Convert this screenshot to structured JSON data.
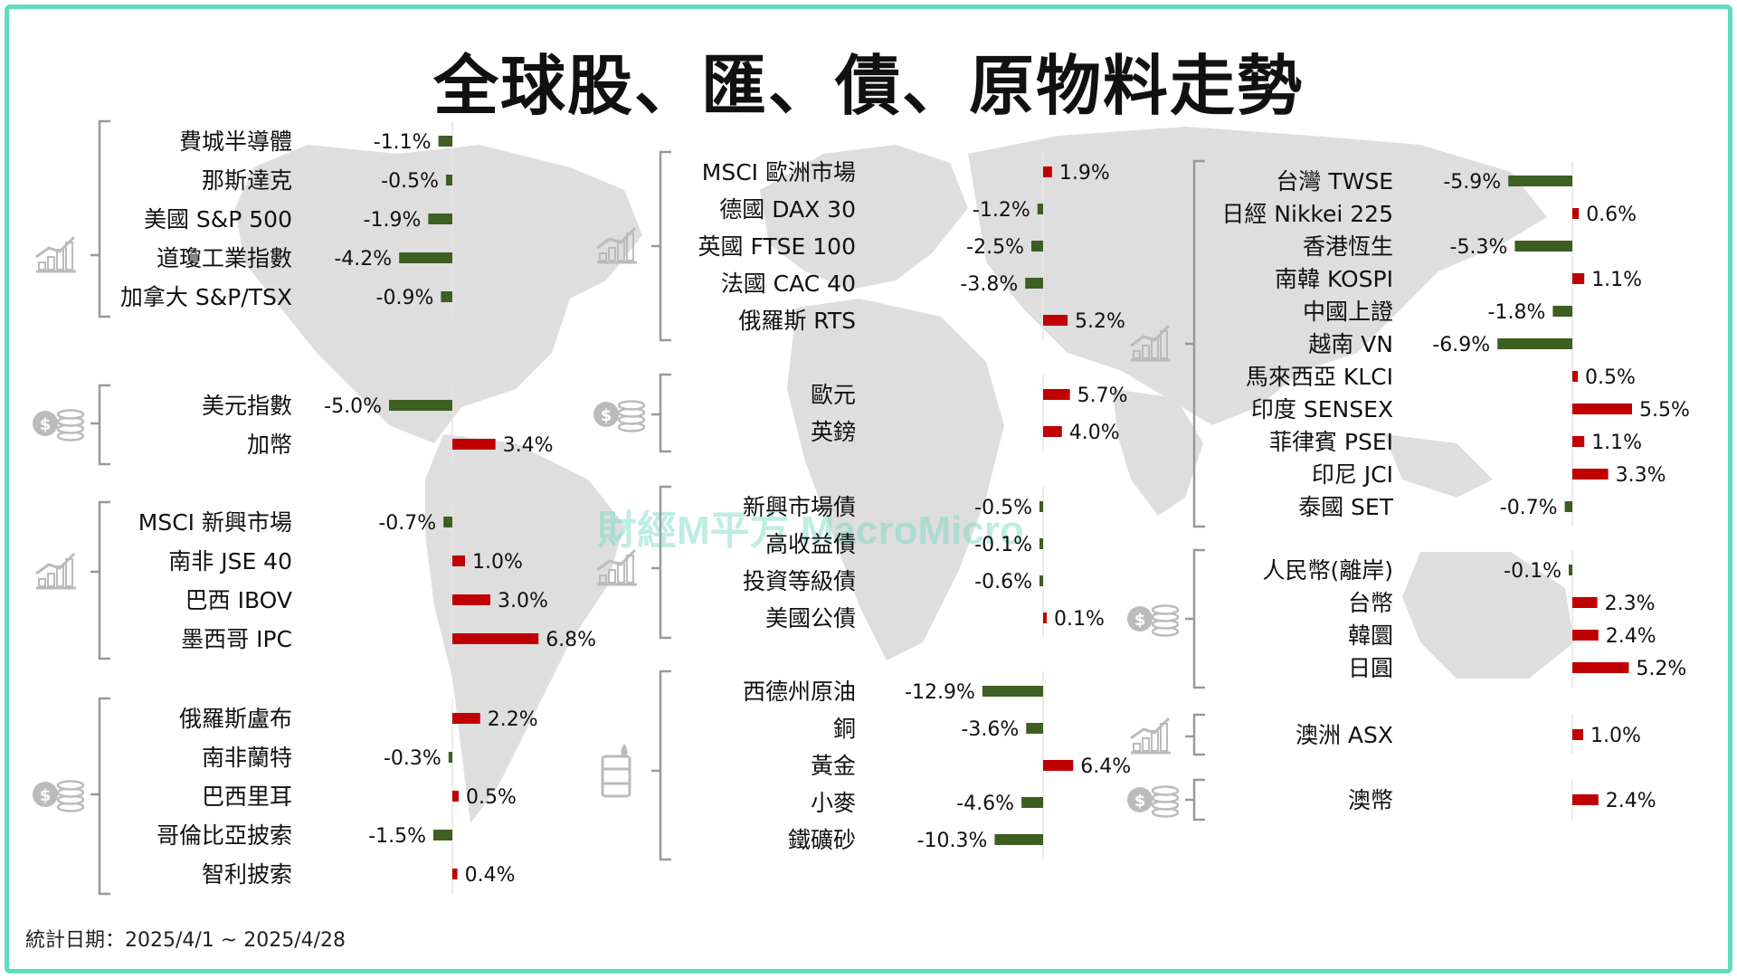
{
  "title": "全球股、匯、債、原物料走勢",
  "footnote": "統計日期：2025/4/1 ~ 2025/4/28",
  "watermark": "財經M平方 MacroMicro",
  "colors": {
    "positive": "#c00000",
    "negative": "#3d5f22",
    "frame": "#5fdcc0"
  },
  "chart_data": {
    "type": "bar",
    "orientation": "horizontal",
    "unit": "%",
    "groups": [
      {
        "icon": "stock-chart-icon",
        "items": [
          {
            "label": "費城半導體",
            "value": -1.1,
            "text": "-1.1%"
          },
          {
            "label": "那斯達克",
            "value": -0.5,
            "text": "-0.5%"
          },
          {
            "label": "美國 S&P 500",
            "value": -1.9,
            "text": "-1.9%"
          },
          {
            "label": "道瓊工業指數",
            "value": -4.2,
            "text": "-4.2%"
          },
          {
            "label": "加拿大 S&P/TSX",
            "value": -0.9,
            "text": "-0.9%"
          }
        ]
      },
      {
        "icon": "coins-icon",
        "items": [
          {
            "label": "美元指數",
            "value": -5.0,
            "text": "-5.0%"
          },
          {
            "label": "加幣",
            "value": 3.4,
            "text": "3.4%"
          }
        ]
      },
      {
        "icon": "stock-chart-icon",
        "items": [
          {
            "label": "MSCI 新興市場",
            "value": -0.7,
            "text": "-0.7%"
          },
          {
            "label": "南非 JSE 40",
            "value": 1.0,
            "text": "1.0%"
          },
          {
            "label": "巴西 IBOV",
            "value": 3.0,
            "text": "3.0%"
          },
          {
            "label": "墨西哥 IPC",
            "value": 6.8,
            "text": "6.8%"
          }
        ]
      },
      {
        "icon": "coins-icon",
        "items": [
          {
            "label": "俄羅斯盧布",
            "value": 2.2,
            "text": "2.2%"
          },
          {
            "label": "南非蘭特",
            "value": -0.3,
            "text": "-0.3%"
          },
          {
            "label": "巴西里耳",
            "value": 0.5,
            "text": "0.5%"
          },
          {
            "label": "哥倫比亞披索",
            "value": -1.5,
            "text": "-1.5%"
          },
          {
            "label": "智利披索",
            "value": 0.4,
            "text": "0.4%"
          }
        ]
      },
      {
        "icon": "stock-chart-icon",
        "items": [
          {
            "label": "MSCI 歐洲市場",
            "value": 1.9,
            "text": "1.9%"
          },
          {
            "label": "德國 DAX 30",
            "value": -1.2,
            "text": "-1.2%"
          },
          {
            "label": "英國 FTSE 100",
            "value": -2.5,
            "text": "-2.5%"
          },
          {
            "label": "法國 CAC 40",
            "value": -3.8,
            "text": "-3.8%"
          },
          {
            "label": "俄羅斯 RTS",
            "value": 5.2,
            "text": "5.2%"
          }
        ]
      },
      {
        "icon": "coins-icon",
        "items": [
          {
            "label": "歐元",
            "value": 5.7,
            "text": "5.7%"
          },
          {
            "label": "英鎊",
            "value": 4.0,
            "text": "4.0%"
          }
        ]
      },
      {
        "icon": "stock-chart-icon",
        "items": [
          {
            "label": "新興市場債",
            "value": -0.5,
            "text": "-0.5%"
          },
          {
            "label": "高收益債",
            "value": -0.1,
            "text": "-0.1%"
          },
          {
            "label": "投資等級債",
            "value": -0.6,
            "text": "-0.6%"
          },
          {
            "label": "美國公債",
            "value": 0.1,
            "text": "0.1%"
          }
        ]
      },
      {
        "icon": "oil-barrel-icon",
        "items": [
          {
            "label": "西德州原油",
            "value": -12.9,
            "text": "-12.9%"
          },
          {
            "label": "銅",
            "value": -3.6,
            "text": "-3.6%"
          },
          {
            "label": "黃金",
            "value": 6.4,
            "text": "6.4%"
          },
          {
            "label": "小麥",
            "value": -4.6,
            "text": "-4.6%"
          },
          {
            "label": "鐵礦砂",
            "value": -10.3,
            "text": "-10.3%"
          }
        ]
      },
      {
        "icon": "stock-chart-icon",
        "items": [
          {
            "label": "台灣 TWSE",
            "value": -5.9,
            "text": "-5.9%"
          },
          {
            "label": "日經 Nikkei 225",
            "value": 0.6,
            "text": "0.6%"
          },
          {
            "label": "香港恆生",
            "value": -5.3,
            "text": "-5.3%"
          },
          {
            "label": "南韓 KOSPI",
            "value": 1.1,
            "text": "1.1%"
          },
          {
            "label": "中國上證",
            "value": -1.8,
            "text": "-1.8%"
          },
          {
            "label": "越南 VN",
            "value": -6.9,
            "text": "-6.9%"
          },
          {
            "label": "馬來西亞 KLCI",
            "value": 0.5,
            "text": "0.5%"
          },
          {
            "label": "印度 SENSEX",
            "value": 5.5,
            "text": "5.5%"
          },
          {
            "label": "菲律賓 PSEI",
            "value": 1.1,
            "text": "1.1%"
          },
          {
            "label": "印尼 JCI",
            "value": 3.3,
            "text": "3.3%"
          },
          {
            "label": "泰國 SET",
            "value": -0.7,
            "text": "-0.7%"
          }
        ]
      },
      {
        "icon": "coins-icon",
        "items": [
          {
            "label": "人民幣(離岸)",
            "value": -0.1,
            "text": "-0.1%"
          },
          {
            "label": "台幣",
            "value": 2.3,
            "text": "2.3%"
          },
          {
            "label": "韓圜",
            "value": 2.4,
            "text": "2.4%"
          },
          {
            "label": "日圓",
            "value": 5.2,
            "text": "5.2%"
          }
        ]
      },
      {
        "icon": "stock-chart-icon",
        "items": [
          {
            "label": "澳洲 ASX",
            "value": 1.0,
            "text": "1.0%"
          }
        ]
      },
      {
        "icon": "coins-icon",
        "items": [
          {
            "label": "澳幣",
            "value": 2.4,
            "text": "2.4%"
          }
        ]
      }
    ]
  }
}
